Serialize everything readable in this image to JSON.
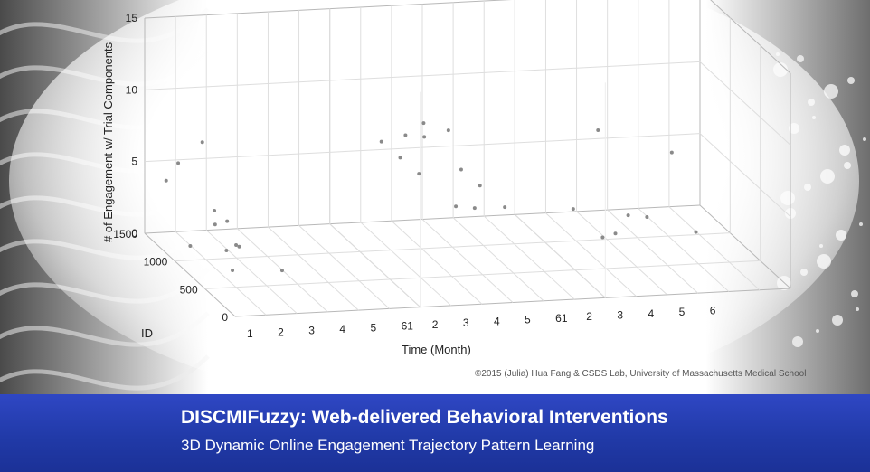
{
  "banner": {
    "title": "DISCMIFuzzy: Web-delivered Behavioral Interventions",
    "subtitle": "3D Dynamic Online Engagement Trajectory Pattern Learning"
  },
  "copyright": "©2015 (Julia) Hua Fang & CSDS Lab, University of Massachusetts Medical School",
  "chart_data": {
    "type": "scatter",
    "dimensions": "3d",
    "zlabel": "# of Engagement w/ Trial Components",
    "xlabel": "Time (Month)",
    "ylabel": "ID",
    "zticks": [
      "0",
      "5",
      "10",
      "15"
    ],
    "yticks": [
      "0",
      "500",
      "1000",
      "1500"
    ],
    "xticks": [
      "1",
      "2",
      "3",
      "4",
      "5",
      "61",
      "2",
      "3",
      "4",
      "5",
      "61",
      "2",
      "3",
      "4",
      "5",
      "6"
    ],
    "zlim": [
      0,
      15
    ],
    "ylim": [
      0,
      1500
    ],
    "grid": true,
    "panels": [
      {
        "name": "panel-1",
        "points": [
          [
            1,
            240,
            4
          ],
          [
            1,
            400,
            3
          ],
          [
            1,
            600,
            5
          ],
          [
            1,
            800,
            9
          ],
          [
            2,
            700,
            2
          ],
          [
            1,
            1200,
            6
          ],
          [
            2,
            900,
            3
          ],
          [
            1,
            300,
            2
          ],
          [
            3,
            500,
            1
          ],
          [
            1,
            1400,
            4
          ],
          [
            2,
            1100,
            2
          ],
          [
            1,
            1000,
            1
          ]
        ]
      },
      {
        "name": "panel-2",
        "points": [
          [
            1,
            200,
            12
          ],
          [
            1,
            500,
            10
          ],
          [
            2,
            700,
            9
          ],
          [
            1,
            900,
            8
          ],
          [
            3,
            600,
            7
          ],
          [
            2,
            1100,
            6
          ],
          [
            4,
            800,
            5
          ],
          [
            3,
            1300,
            4
          ],
          [
            5,
            900,
            3
          ],
          [
            4,
            1200,
            2
          ],
          [
            5,
            1400,
            1
          ],
          [
            2,
            300,
            11
          ]
        ]
      },
      {
        "name": "panel-3",
        "points": [
          [
            3,
            1400,
            6
          ],
          [
            5,
            1200,
            5
          ],
          [
            1,
            300,
            3
          ],
          [
            2,
            600,
            2
          ],
          [
            3,
            900,
            2
          ],
          [
            4,
            1100,
            1
          ],
          [
            5,
            800,
            1
          ],
          [
            2,
            1300,
            1
          ]
        ]
      }
    ]
  }
}
